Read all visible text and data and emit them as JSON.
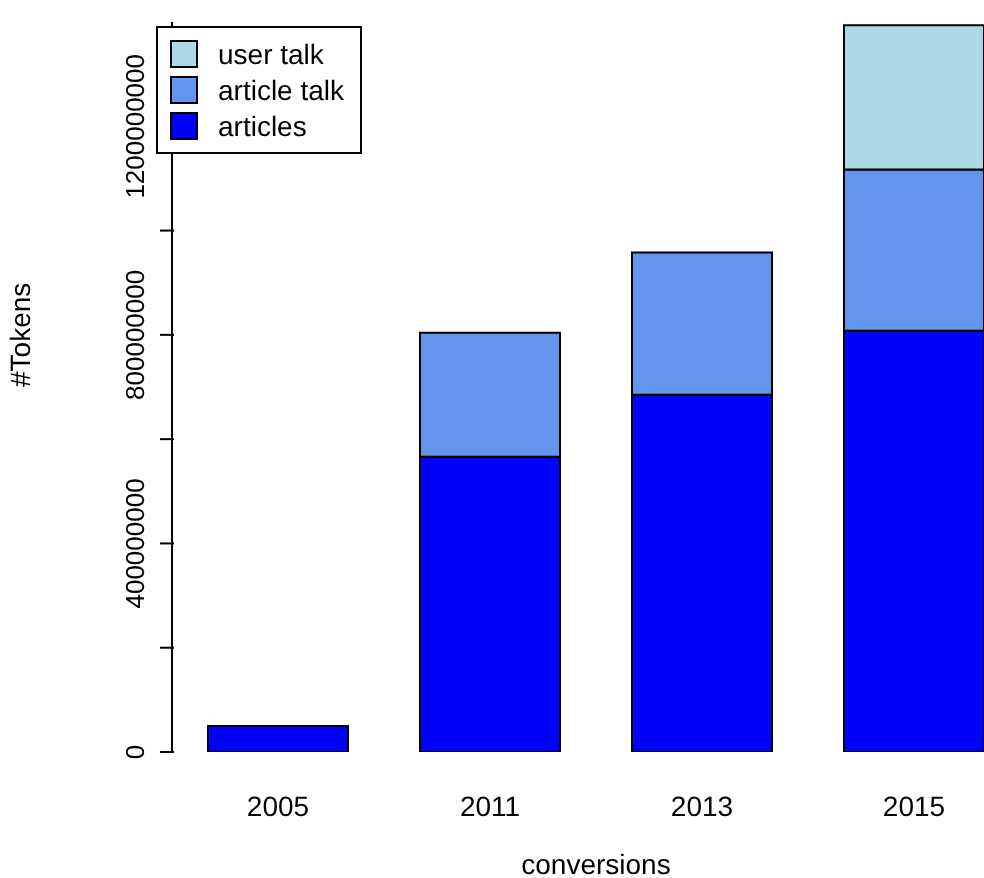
{
  "chart_data": {
    "type": "bar",
    "stacked": true,
    "xlabel": "conversions",
    "ylabel": "#Tokens",
    "categories": [
      "2005",
      "2011",
      "2013",
      "2015"
    ],
    "series": [
      {
        "name": "articles",
        "color": "#0000ff",
        "values": [
          50000000,
          566000000,
          685000000,
          808000000
        ]
      },
      {
        "name": "article talk",
        "color": "#6495ed",
        "values": [
          0,
          238000000,
          273000000,
          309000000
        ]
      },
      {
        "name": "user talk",
        "color": "#add8e6",
        "values": [
          0,
          0,
          0,
          277000000
        ]
      }
    ],
    "ylim": [
      0,
      1400000000
    ],
    "yticks": [
      0,
      {
        "value": 200000000,
        "label": null
      },
      400000000,
      {
        "value": 600000000,
        "label": null
      },
      800000000,
      {
        "value": 1000000000,
        "label": null
      },
      1200000000
    ],
    "legend": "top left",
    "grid": false
  }
}
